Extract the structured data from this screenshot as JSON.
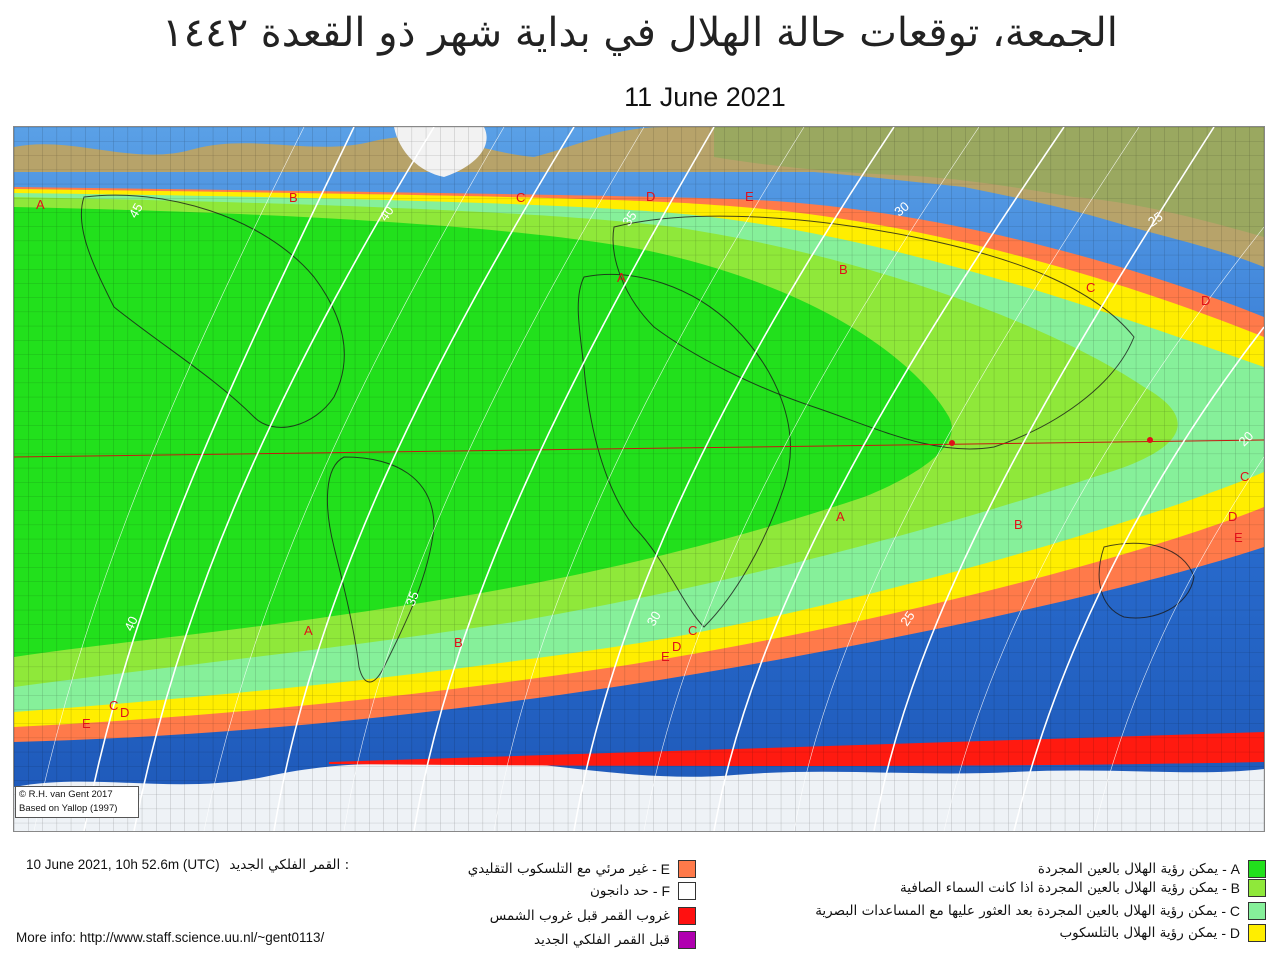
{
  "header": {
    "title_ar": "الجمعة، توقعات حالة الهلال في بداية شهر ذو القعدة ١٤٤٢",
    "date": "11 June 2021"
  },
  "map": {
    "credit_line1": "© R.H. van Gent 2017",
    "credit_line2": "Based on Yallop (1997)",
    "zone_colors": {
      "A": "#22e01c",
      "B": "#8fe83a",
      "C": "#86f09a",
      "D": "#ffee00",
      "E": "#ff7a4a",
      "F": "#ffffff",
      "red": "#ff1a10"
    },
    "contour_labels": [
      "45",
      "40",
      "40",
      "35",
      "35",
      "30",
      "30",
      "25",
      "25",
      "20"
    ],
    "zone_letters": [
      "A",
      "B",
      "C",
      "D",
      "E"
    ]
  },
  "footer": {
    "new_moon_label": "القمر الفلكي الجديد :",
    "new_moon_time": "10 June 2021, 10h 52.6m (UTC)",
    "more_info": "More info: http://www.staff.science.uu.nl/~gent0113/"
  },
  "legend": {
    "right": [
      {
        "code": "A -",
        "label": "يمكن رؤية الهلال بالعين المجردة",
        "color": "#22e01c"
      },
      {
        "code": "B -",
        "label": "يمكن رؤية الهلال بالعين المجردة اذا كانت السماء الصافية",
        "color": "#8fe83a"
      },
      {
        "code": "C -",
        "label": "يمكن رؤية الهلال بالعين المجردة بعد العثور عليها مع المساعدات البصرية",
        "color": "#86f09a"
      },
      {
        "code": "D -",
        "label": "يمكن رؤية الهلال بالتلسكوب",
        "color": "#ffee00"
      }
    ],
    "middle": [
      {
        "code": "E -",
        "label": "غير مرئي مع التلسكوب التقليدي",
        "color": "#ff7a4a"
      },
      {
        "code": "F -",
        "label": "حد دانجون",
        "color": "#ffffff"
      },
      {
        "code": "",
        "label": "غروب القمر قبل غروب الشمس",
        "color": "#ff1010"
      },
      {
        "code": "",
        "label": "قبل القمر  الفلكي الجديد",
        "color": "#b000b0"
      }
    ]
  }
}
